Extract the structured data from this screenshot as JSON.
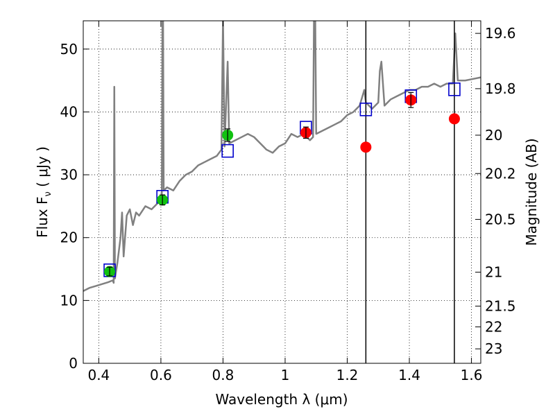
{
  "chart_data": {
    "type": "scatter",
    "xlabel": "Wavelength  λ (μm)",
    "ylabel": "Flux  F",
    "ylabel_sub": "ν",
    "ylabel_unit": "  ( μJy )",
    "y2label": "Magnitude (AB)",
    "xlim": [
      0.35,
      1.63
    ],
    "ylim": [
      0,
      54.5
    ],
    "grid": true,
    "x_ticks": [
      0.4,
      0.6,
      0.8,
      1.0,
      1.2,
      1.4,
      1.6
    ],
    "x_tick_labels": [
      "0.4",
      "0.6",
      "0.8",
      "1",
      "1.2",
      "1.4",
      "1.6"
    ],
    "y_ticks": [
      0,
      10,
      20,
      30,
      40,
      50
    ],
    "y_tick_labels": [
      "0",
      "10",
      "20",
      "30",
      "40",
      "50"
    ],
    "y2_ticks": [
      {
        "label": "19.6",
        "flux": 52.5
      },
      {
        "label": "19.8",
        "flux": 43.7
      },
      {
        "label": "20",
        "flux": 36.3
      },
      {
        "label": "20.2",
        "flux": 30.2
      },
      {
        "label": "20.5",
        "flux": 22.9
      },
      {
        "label": "21",
        "flux": 14.5
      },
      {
        "label": "21.5",
        "flux": 9.1
      },
      {
        "label": "22",
        "flux": 5.8
      },
      {
        "label": "23",
        "flux": 2.3
      }
    ],
    "vertical_lines": [
      1.26,
      1.545
    ],
    "colors": {
      "spectrum": "#808080",
      "model_box": "#0000cc",
      "green": "#11c111",
      "red": "#ff0000",
      "vline": "#000000"
    },
    "series": [
      {
        "kind": "spectrum",
        "points": [
          [
            0.35,
            11.5
          ],
          [
            0.37,
            12.0
          ],
          [
            0.39,
            12.3
          ],
          [
            0.41,
            12.6
          ],
          [
            0.43,
            12.9
          ],
          [
            0.445,
            13.2
          ],
          [
            0.448,
            12.8
          ],
          [
            0.45,
            44.0
          ],
          [
            0.452,
            13.5
          ],
          [
            0.46,
            16.0
          ],
          [
            0.47,
            20.0
          ],
          [
            0.475,
            24.0
          ],
          [
            0.48,
            17.0
          ],
          [
            0.49,
            23.5
          ],
          [
            0.5,
            24.5
          ],
          [
            0.51,
            22.0
          ],
          [
            0.52,
            24.0
          ],
          [
            0.53,
            23.5
          ],
          [
            0.55,
            25.0
          ],
          [
            0.57,
            24.5
          ],
          [
            0.59,
            25.5
          ],
          [
            0.603,
            26.5
          ],
          [
            0.605,
            55.0
          ],
          [
            0.607,
            55.0
          ],
          [
            0.609,
            27.5
          ],
          [
            0.62,
            28.0
          ],
          [
            0.64,
            27.5
          ],
          [
            0.66,
            29.0
          ],
          [
            0.68,
            30.0
          ],
          [
            0.7,
            30.5
          ],
          [
            0.72,
            31.5
          ],
          [
            0.74,
            32.0
          ],
          [
            0.76,
            32.5
          ],
          [
            0.78,
            33.0
          ],
          [
            0.795,
            34.0
          ],
          [
            0.8,
            55.0
          ],
          [
            0.805,
            34.5
          ],
          [
            0.815,
            48.0
          ],
          [
            0.82,
            35.0
          ],
          [
            0.84,
            35.5
          ],
          [
            0.86,
            36.0
          ],
          [
            0.88,
            36.5
          ],
          [
            0.9,
            36.0
          ],
          [
            0.92,
            35.0
          ],
          [
            0.94,
            34.0
          ],
          [
            0.96,
            33.5
          ],
          [
            0.98,
            34.5
          ],
          [
            1.0,
            35.0
          ],
          [
            1.02,
            36.5
          ],
          [
            1.04,
            36.0
          ],
          [
            1.06,
            36.5
          ],
          [
            1.08,
            35.5
          ],
          [
            1.09,
            36.0
          ],
          [
            1.093,
            55.0
          ],
          [
            1.097,
            55.0
          ],
          [
            1.1,
            36.5
          ],
          [
            1.12,
            37.0
          ],
          [
            1.14,
            37.5
          ],
          [
            1.16,
            38.0
          ],
          [
            1.18,
            38.5
          ],
          [
            1.2,
            39.5
          ],
          [
            1.22,
            40.0
          ],
          [
            1.24,
            41.0
          ],
          [
            1.255,
            43.5
          ],
          [
            1.26,
            41.5
          ],
          [
            1.28,
            40.5
          ],
          [
            1.3,
            41.5
          ],
          [
            1.305,
            46.5
          ],
          [
            1.31,
            48.0
          ],
          [
            1.32,
            41.0
          ],
          [
            1.34,
            42.0
          ],
          [
            1.36,
            42.5
          ],
          [
            1.38,
            43.0
          ],
          [
            1.4,
            43.5
          ],
          [
            1.42,
            43.5
          ],
          [
            1.44,
            44.0
          ],
          [
            1.46,
            44.0
          ],
          [
            1.48,
            44.5
          ],
          [
            1.5,
            44.0
          ],
          [
            1.52,
            44.5
          ],
          [
            1.54,
            44.5
          ],
          [
            1.548,
            52.5
          ],
          [
            1.556,
            45.0
          ],
          [
            1.58,
            45.0
          ],
          [
            1.6,
            45.2
          ],
          [
            1.63,
            45.5
          ]
        ]
      },
      {
        "kind": "model_box",
        "points": [
          [
            0.435,
            14.8
          ],
          [
            0.605,
            26.5
          ],
          [
            0.815,
            33.8
          ],
          [
            1.067,
            37.5
          ],
          [
            1.26,
            40.4
          ],
          [
            1.405,
            42.5
          ],
          [
            1.545,
            43.6
          ]
        ]
      },
      {
        "kind": "measured_green",
        "points": [
          [
            0.435,
            14.6,
            0.7
          ],
          [
            0.605,
            26.0,
            0.8
          ],
          [
            0.815,
            36.3,
            1.0
          ]
        ]
      },
      {
        "kind": "measured_red",
        "points": [
          [
            1.067,
            36.7,
            0.9
          ],
          [
            1.26,
            34.4,
            0
          ],
          [
            1.405,
            41.9,
            1.2
          ],
          [
            1.545,
            38.9,
            0
          ]
        ]
      }
    ]
  }
}
